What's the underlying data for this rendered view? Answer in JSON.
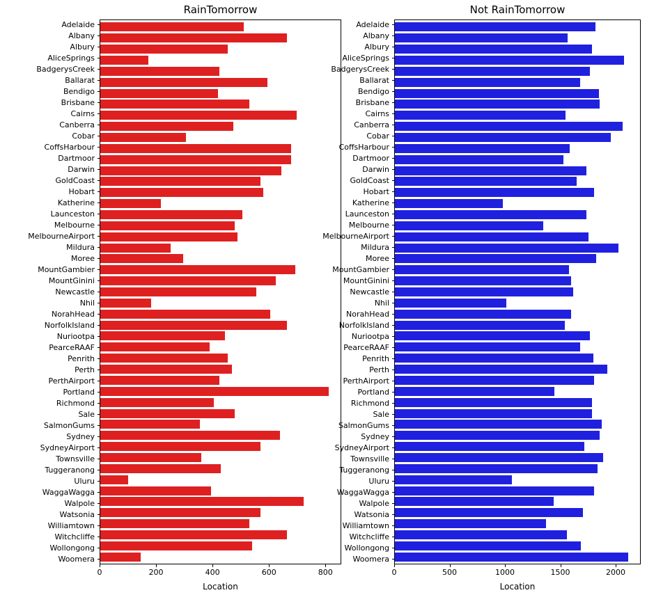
{
  "figure": {
    "background": "#ffffff"
  },
  "chart_data": [
    {
      "type": "bar",
      "orientation": "horizontal",
      "title": "RainTomorrow",
      "xlabel": "Location",
      "bar_color": "#df2020",
      "xlim": [
        0,
        856
      ],
      "xticks": [
        0,
        200,
        400,
        600,
        800
      ],
      "grid": false,
      "legend": "none",
      "categories": [
        "Adelaide",
        "Albany",
        "Albury",
        "AliceSprings",
        "BadgerysCreek",
        "Ballarat",
        "Bendigo",
        "Brisbane",
        "Cairns",
        "Canberra",
        "Cobar",
        "CoffsHarbour",
        "Dartmoor",
        "Darwin",
        "GoldCoast",
        "Hobart",
        "Katherine",
        "Launceston",
        "Melbourne",
        "MelbourneAirport",
        "Mildura",
        "Moree",
        "MountGambier",
        "MountGinini",
        "Newcastle",
        "Nhil",
        "NorahHead",
        "NorfolkIsland",
        "Nuriootpa",
        "PearceRAAF",
        "Penrith",
        "Perth",
        "PerthAirport",
        "Portland",
        "Richmond",
        "Sale",
        "SalmonGums",
        "Sydney",
        "SydneyAirport",
        "Townsville",
        "Tuggeranong",
        "Uluru",
        "WaggaWagga",
        "Walpole",
        "Watsonia",
        "Williamtown",
        "Witchcliffe",
        "Wollongong",
        "Woomera"
      ],
      "values": [
        510,
        665,
        455,
        170,
        425,
        595,
        420,
        530,
        700,
        475,
        305,
        680,
        680,
        645,
        570,
        580,
        215,
        505,
        480,
        490,
        250,
        295,
        695,
        625,
        555,
        180,
        605,
        665,
        445,
        390,
        455,
        470,
        425,
        815,
        405,
        480,
        355,
        640,
        570,
        360,
        430,
        100,
        395,
        725,
        570,
        530,
        665,
        540,
        145
      ]
    },
    {
      "type": "bar",
      "orientation": "horizontal",
      "title": "Not RainTomorrow",
      "xlabel": "Location",
      "bar_color": "#2020df",
      "xlim": [
        0,
        2226
      ],
      "xticks": [
        0,
        500,
        1000,
        1500,
        2000
      ],
      "grid": false,
      "legend": "none",
      "categories": [
        "Adelaide",
        "Albany",
        "Albury",
        "AliceSprings",
        "BadgerysCreek",
        "Ballarat",
        "Bendigo",
        "Brisbane",
        "Cairns",
        "Canberra",
        "Cobar",
        "CoffsHarbour",
        "Dartmoor",
        "Darwin",
        "GoldCoast",
        "Hobart",
        "Katherine",
        "Launceston",
        "Melbourne",
        "MelbourneAirport",
        "Mildura",
        "Moree",
        "MountGambier",
        "MountGinini",
        "Newcastle",
        "Nhil",
        "NorahHead",
        "NorfolkIsland",
        "Nuriootpa",
        "PearceRAAF",
        "Penrith",
        "Perth",
        "PerthAirport",
        "Portland",
        "Richmond",
        "Sale",
        "SalmonGums",
        "Sydney",
        "SydneyAirport",
        "Townsville",
        "Tuggeranong",
        "Uluru",
        "WaggaWagga",
        "Walpole",
        "Watsonia",
        "Williamtown",
        "Witchcliffe",
        "Wollongong",
        "Woomera"
      ],
      "values": [
        1820,
        1570,
        1790,
        2080,
        1770,
        1680,
        1850,
        1860,
        1550,
        2070,
        1960,
        1590,
        1530,
        1740,
        1650,
        1810,
        980,
        1740,
        1350,
        1760,
        2030,
        1830,
        1580,
        1600,
        1620,
        1010,
        1600,
        1540,
        1770,
        1680,
        1800,
        1930,
        1810,
        1450,
        1790,
        1790,
        1880,
        1860,
        1720,
        1890,
        1840,
        1060,
        1810,
        1440,
        1710,
        1370,
        1560,
        1690,
        2120
      ]
    }
  ]
}
